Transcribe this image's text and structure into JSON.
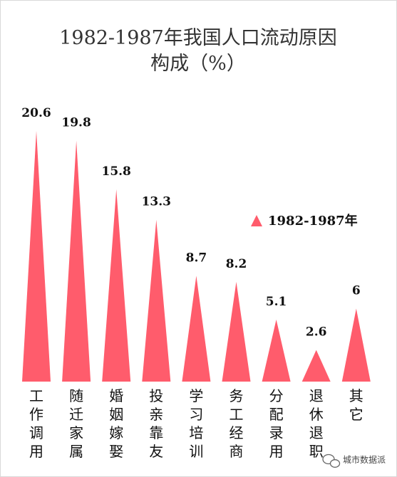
{
  "chart_data": {
    "type": "bar",
    "title_lines": [
      "1982-1987年我国人口流动原因",
      "构成（%）"
    ],
    "categories": [
      "工作调用",
      "随迁家属",
      "婚姻嫁娶",
      "投亲靠友",
      "学习培训",
      "务工经商",
      "分配录用",
      "退休退职",
      "其它"
    ],
    "series": [
      {
        "name": "1982-1987年",
        "values": [
          20.6,
          19.8,
          15.8,
          13.3,
          8.7,
          8.2,
          5.1,
          2.6,
          6
        ]
      }
    ],
    "value_labels": [
      "20.6",
      "19.8",
      "15.8",
      "13.3",
      "8.7",
      "8.2",
      "5.1",
      "2.6",
      "6"
    ],
    "ylim": [
      0,
      20.6
    ],
    "grid": false,
    "legend_position": "right",
    "bar_color": "#ff5c6c"
  },
  "watermark": {
    "text": "城市数据派"
  }
}
